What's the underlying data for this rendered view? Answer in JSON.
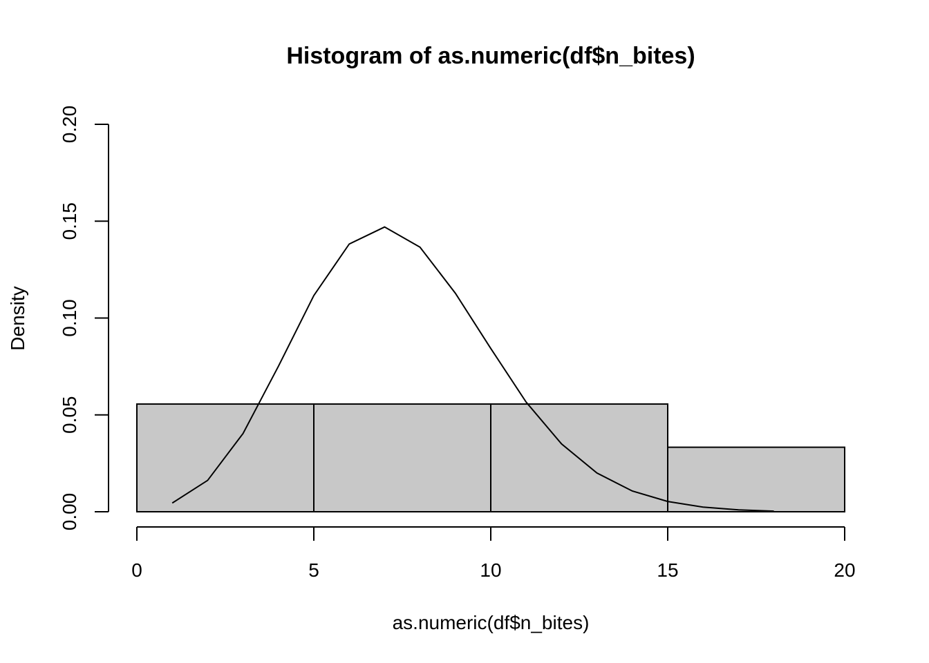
{
  "chart_data": {
    "type": "bar",
    "title": "Histogram of as.numeric(df$n_bites)",
    "xlabel": "as.numeric(df$n_bites)",
    "ylabel": "Density",
    "xlim": [
      0,
      20
    ],
    "ylim": [
      0,
      0.2
    ],
    "x_ticks": [
      "0",
      "5",
      "10",
      "15",
      "20"
    ],
    "y_ticks": [
      "0.00",
      "0.05",
      "0.10",
      "0.15",
      "0.20"
    ],
    "bins": [
      {
        "start": 0,
        "end": 5,
        "density": 0.0556
      },
      {
        "start": 5,
        "end": 10,
        "density": 0.0556
      },
      {
        "start": 10,
        "end": 15,
        "density": 0.0556
      },
      {
        "start": 15,
        "end": 20,
        "density": 0.0333
      }
    ],
    "series": [
      {
        "type": "line",
        "x": [
          1,
          2,
          3,
          4,
          5,
          6,
          7,
          8,
          9,
          10,
          11,
          12,
          13,
          14,
          15,
          16,
          17,
          18
        ],
        "values": [
          0.0045,
          0.0162,
          0.0404,
          0.0751,
          0.1116,
          0.1382,
          0.147,
          0.1366,
          0.1128,
          0.0843,
          0.0566,
          0.035,
          0.02,
          0.0107,
          0.0053,
          0.0024,
          0.001,
          0.0003
        ]
      }
    ],
    "grid": false,
    "legend": "none"
  }
}
